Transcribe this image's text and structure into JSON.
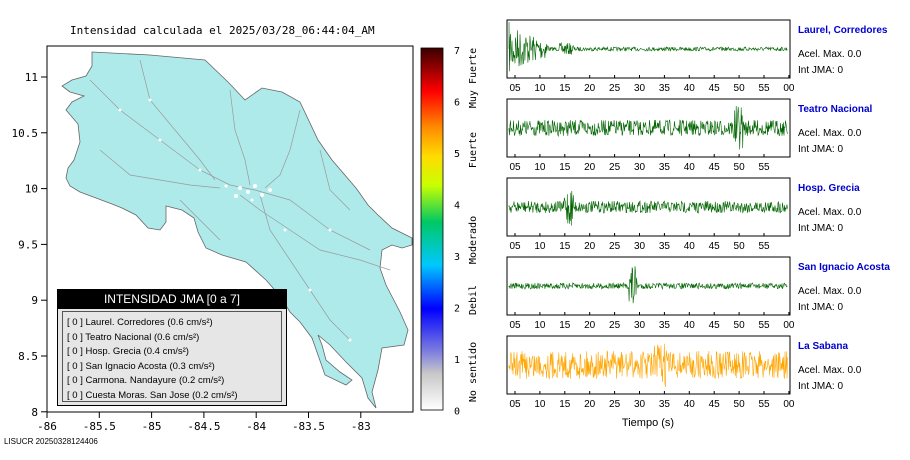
{
  "map": {
    "title": "Intensidad calculada el 2025/03/28_06:44:04_AM",
    "x_ticks": [
      "-86",
      "-85.5",
      "-85",
      "-84.5",
      "-84",
      "-83.5",
      "-83"
    ],
    "y_ticks": [
      "11",
      "10.5",
      "10",
      "9.5",
      "9",
      "8.5",
      "8"
    ],
    "colors": {
      "land": "#aeeaea",
      "roads": "#9a9a9a",
      "frame": "#000000"
    }
  },
  "colorbar": {
    "ticks": [
      "7",
      "6",
      "5",
      "4",
      "3",
      "2",
      "1",
      "0"
    ],
    "category_labels": [
      "Muy Fuerte",
      "Fuerte",
      "Moderado",
      "Debil",
      "No sentido"
    ]
  },
  "legend": {
    "title": "INTENSIDAD JMA [0 a 7]",
    "items": [
      "[ 0 ]  Laurel. Corredores (0.6 cm/s²)",
      "[ 0 ]  Teatro Nacional (0.6 cm/s²)",
      "[ 0 ]  Hosp. Grecia (0.4 cm/s²)",
      "[ 0 ]  San Ignacio Acosta (0.3 cm/s²)",
      "[ 0 ]  Carmona. Nandayure (0.2 cm/s²)",
      "[ 0 ]  Cuesta Moras. San Jose (0.2 cm/s²)"
    ]
  },
  "footer": "LISUCR 20250328124406",
  "chart_data": {
    "type": "line",
    "xlabel": "Tiempo (s)",
    "stations": [
      {
        "name": "Laurel, Corredores",
        "acel": "Acel. Max. 0.0",
        "int": "Int JMA: 0",
        "color": "#006400",
        "ticks": [
          "05",
          "10",
          "15",
          "20",
          "25",
          "30",
          "35",
          "40",
          "45",
          "50",
          "55",
          "00"
        ]
      },
      {
        "name": "Teatro Nacional",
        "acel": "Acel. Max. 0.0",
        "int": "Int JMA: 0",
        "color": "#006400",
        "ticks": [
          "05",
          "10",
          "15",
          "20",
          "25",
          "30",
          "35",
          "40",
          "45",
          "50",
          "55"
        ]
      },
      {
        "name": "Hosp. Grecia",
        "acel": "Acel. Max. 0.0",
        "int": "Int JMA: 0",
        "color": "#006400",
        "ticks": [
          "05",
          "10",
          "15",
          "20",
          "25",
          "30",
          "35",
          "40",
          "45",
          "50",
          "55"
        ]
      },
      {
        "name": "San Ignacio Acosta",
        "acel": "Acel. Max. 0.0",
        "int": "Int JMA: 0",
        "color": "#006400",
        "ticks": [
          "05",
          "10",
          "15",
          "20",
          "25",
          "30",
          "35",
          "40",
          "45",
          "50",
          "55",
          "00"
        ]
      },
      {
        "name": "La Sabana",
        "acel": "Acel. Max. 0.0",
        "int": "Int JMA: 0",
        "color": "#ffa500",
        "ticks": [
          "05",
          "10",
          "15",
          "20",
          "25",
          "30",
          "35",
          "40",
          "45",
          "50",
          "55",
          "00"
        ]
      }
    ]
  }
}
